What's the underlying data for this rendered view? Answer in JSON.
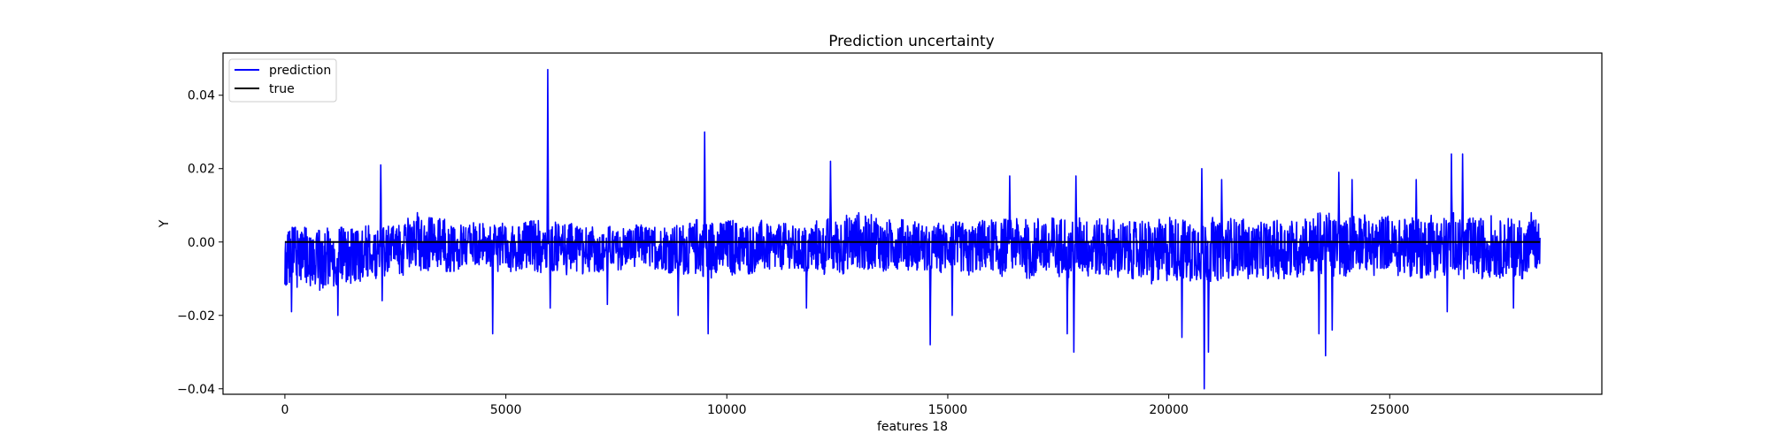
{
  "chart_data": {
    "type": "line",
    "title": "Prediction uncertainty",
    "xlabel": "features 18",
    "ylabel": "Y",
    "xlim": [
      -1400,
      29800
    ],
    "ylim": [
      -0.0415,
      0.0515
    ],
    "xticks": [
      0,
      5000,
      10000,
      15000,
      20000,
      25000
    ],
    "xtick_labels": [
      "0",
      "5000",
      "10000",
      "15000",
      "20000",
      "25000"
    ],
    "yticks": [
      -0.04,
      -0.02,
      0.0,
      0.02,
      0.04
    ],
    "ytick_labels": [
      "−0.04",
      "−0.02",
      "0.00",
      "0.02",
      "0.04"
    ],
    "grid": false,
    "legend": {
      "position": "upper left",
      "entries": [
        "prediction",
        "true"
      ]
    },
    "series": [
      {
        "name": "prediction",
        "color": "#0000ff",
        "style": "dense noisy signal around 0, envelope approx. ±0.005 with spikes listed below",
        "x_range": [
          0,
          28400
        ],
        "band_max": [
          [
            0,
            0.004
          ],
          [
            1500,
            0.004
          ],
          [
            3000,
            0.007
          ],
          [
            4500,
            0.005
          ],
          [
            6000,
            0.006
          ],
          [
            7000,
            0.004
          ],
          [
            8500,
            0.005
          ],
          [
            10000,
            0.007
          ],
          [
            11500,
            0.005
          ],
          [
            13000,
            0.008
          ],
          [
            14500,
            0.005
          ],
          [
            16000,
            0.006
          ],
          [
            17500,
            0.007
          ],
          [
            19000,
            0.006
          ],
          [
            20500,
            0.007
          ],
          [
            22000,
            0.006
          ],
          [
            23500,
            0.008
          ],
          [
            25000,
            0.007
          ],
          [
            26500,
            0.008
          ],
          [
            28400,
            0.006
          ]
        ],
        "band_min": [
          [
            0,
            -0.012
          ],
          [
            1000,
            -0.014
          ],
          [
            2000,
            -0.01
          ],
          [
            3500,
            -0.008
          ],
          [
            5000,
            -0.008
          ],
          [
            6500,
            -0.009
          ],
          [
            8000,
            -0.007
          ],
          [
            9500,
            -0.01
          ],
          [
            11000,
            -0.008
          ],
          [
            12500,
            -0.009
          ],
          [
            14000,
            -0.008
          ],
          [
            15500,
            -0.009
          ],
          [
            17000,
            -0.01
          ],
          [
            18500,
            -0.01
          ],
          [
            20000,
            -0.012
          ],
          [
            21500,
            -0.01
          ],
          [
            23000,
            -0.01
          ],
          [
            24500,
            -0.009
          ],
          [
            26000,
            -0.01
          ],
          [
            28400,
            -0.01
          ]
        ],
        "spikes": [
          [
            2170,
            0.021
          ],
          [
            3000,
            0.008
          ],
          [
            5950,
            0.047
          ],
          [
            9500,
            0.03
          ],
          [
            12350,
            0.022
          ],
          [
            16400,
            0.018
          ],
          [
            17700,
            0.018
          ],
          [
            17900,
            0.018
          ],
          [
            20750,
            0.02
          ],
          [
            21200,
            0.017
          ],
          [
            23550,
            0.019
          ],
          [
            23850,
            0.019
          ],
          [
            24150,
            0.017
          ],
          [
            25600,
            0.017
          ],
          [
            26400,
            0.024
          ],
          [
            26650,
            0.024
          ],
          [
            28200,
            0.008
          ],
          [
            150,
            -0.019
          ],
          [
            1200,
            -0.02
          ],
          [
            2200,
            -0.016
          ],
          [
            4700,
            -0.025
          ],
          [
            6000,
            -0.018
          ],
          [
            7300,
            -0.017
          ],
          [
            8900,
            -0.02
          ],
          [
            9580,
            -0.025
          ],
          [
            11800,
            -0.018
          ],
          [
            14600,
            -0.028
          ],
          [
            15100,
            -0.02
          ],
          [
            17700,
            -0.025
          ],
          [
            17850,
            -0.03
          ],
          [
            20300,
            -0.026
          ],
          [
            20800,
            -0.04
          ],
          [
            20900,
            -0.03
          ],
          [
            23400,
            -0.025
          ],
          [
            23550,
            -0.031
          ],
          [
            23700,
            -0.024
          ],
          [
            26300,
            -0.019
          ],
          [
            27800,
            -0.018
          ]
        ]
      },
      {
        "name": "true",
        "color": "#000000",
        "x": [
          0,
          28400
        ],
        "y": [
          0.0,
          0.0
        ]
      }
    ]
  }
}
